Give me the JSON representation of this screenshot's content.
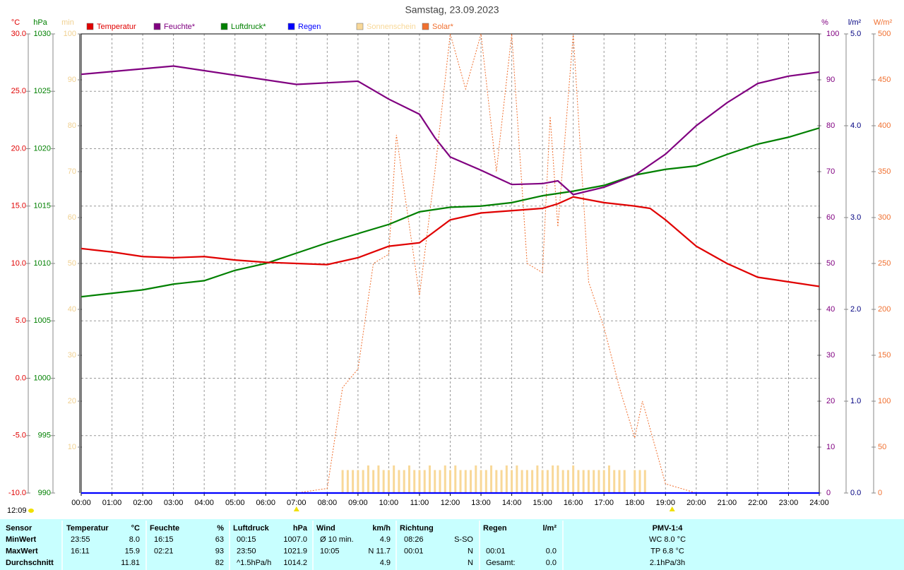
{
  "chart_data": {
    "type": "line",
    "title": "Samstag, 23.09.2023",
    "time_label": "12:09",
    "sun_events": [
      420,
      1153
    ],
    "xlim": [
      0,
      1440
    ],
    "xticks": [
      {
        "value": 0,
        "label": "00:00"
      },
      {
        "value": 60,
        "label": "01:00"
      },
      {
        "value": 120,
        "label": "02:00"
      },
      {
        "value": 180,
        "label": "03:00"
      },
      {
        "value": 240,
        "label": "04:00"
      },
      {
        "value": 300,
        "label": "05:00"
      },
      {
        "value": 360,
        "label": "06:00"
      },
      {
        "value": 420,
        "label": "07:00"
      },
      {
        "value": 480,
        "label": "08:00"
      },
      {
        "value": 540,
        "label": "09:00"
      },
      {
        "value": 600,
        "label": "10:00"
      },
      {
        "value": 660,
        "label": "11:00"
      },
      {
        "value": 720,
        "label": "12:00"
      },
      {
        "value": 780,
        "label": "13:00"
      },
      {
        "value": 840,
        "label": "14:00"
      },
      {
        "value": 900,
        "label": "15:00"
      },
      {
        "value": 960,
        "label": "16:00"
      },
      {
        "value": 1020,
        "label": "17:00"
      },
      {
        "value": 1080,
        "label": "18:00"
      },
      {
        "value": 1140,
        "label": "19:00"
      },
      {
        "value": 1200,
        "label": "20:00"
      },
      {
        "value": 1260,
        "label": "21:00"
      },
      {
        "value": 1320,
        "label": "22:00"
      },
      {
        "value": 1380,
        "label": "23:00"
      },
      {
        "value": 1440,
        "label": "24:00"
      }
    ],
    "grid": true,
    "axes": [
      {
        "label": "°C",
        "color": "#e00000",
        "lim": [
          -10,
          30
        ],
        "ticks": [
          {
            "value": -10,
            "label": "-10.0"
          },
          {
            "value": -5,
            "label": "-5.0"
          },
          {
            "value": 0,
            "label": "0.0"
          },
          {
            "value": 5,
            "label": "5.0"
          },
          {
            "value": 10,
            "label": "10.0"
          },
          {
            "value": 15,
            "label": "15.0"
          },
          {
            "value": 20,
            "label": "20.0"
          },
          {
            "value": 25,
            "label": "25.0"
          },
          {
            "value": 30,
            "label": "30.0"
          }
        ]
      },
      {
        "label": "hPa",
        "color": "#008000",
        "lim": [
          990,
          1030
        ],
        "ticks": [
          990,
          995,
          1000,
          1005,
          1010,
          1015,
          1020,
          1025,
          1030
        ]
      },
      {
        "label": "min",
        "color": "#f0d090",
        "lim": [
          0,
          100
        ],
        "ticks": [
          10,
          20,
          30,
          40,
          50,
          60,
          70,
          80,
          90,
          100
        ]
      },
      {
        "label": "%",
        "color": "#800080",
        "lim": [
          0,
          100
        ],
        "ticks": [
          0,
          10,
          20,
          30,
          40,
          50,
          60,
          70,
          80,
          90,
          100
        ]
      },
      {
        "label": "l/m²",
        "color": "#000080",
        "lim": [
          0,
          5
        ],
        "ticks": [
          {
            "value": 0,
            "label": "0.0"
          },
          {
            "value": 1,
            "label": "1.0"
          },
          {
            "value": 2,
            "label": "2.0"
          },
          {
            "value": 3,
            "label": "3.0"
          },
          {
            "value": 4,
            "label": "4.0"
          },
          {
            "value": 5,
            "label": "5.0"
          }
        ]
      },
      {
        "label": "W/m²",
        "color": "#f07030",
        "lim": [
          0,
          500
        ],
        "ticks": [
          0,
          50,
          100,
          150,
          200,
          250,
          300,
          350,
          400,
          450,
          500
        ]
      }
    ],
    "series": [
      {
        "name": "Temperatur",
        "color": "#e00000",
        "axis": 0,
        "style": "line",
        "x": [
          0,
          60,
          120,
          180,
          240,
          300,
          360,
          420,
          480,
          540,
          600,
          660,
          690,
          720,
          780,
          840,
          900,
          930,
          960,
          1020,
          1080,
          1110,
          1140,
          1200,
          1260,
          1320,
          1380,
          1440
        ],
        "values": [
          11.3,
          11.0,
          10.6,
          10.5,
          10.6,
          10.3,
          10.1,
          10.0,
          9.9,
          10.5,
          11.5,
          11.8,
          12.8,
          13.8,
          14.4,
          14.6,
          14.8,
          15.2,
          15.8,
          15.3,
          15.0,
          14.8,
          13.8,
          11.5,
          10.0,
          8.8,
          8.4,
          8.0
        ]
      },
      {
        "name": "Feuchte*",
        "color": "#800080",
        "axis": 3,
        "style": "line",
        "x": [
          0,
          180,
          420,
          540,
          600,
          660,
          690,
          720,
          780,
          840,
          900,
          930,
          960,
          1020,
          1080,
          1140,
          1200,
          1260,
          1320,
          1380,
          1440
        ],
        "values": [
          91.2,
          93,
          89,
          89.7,
          85.8,
          82.5,
          77.4,
          73.2,
          70.3,
          67.2,
          67.4,
          68,
          65,
          66.6,
          69.2,
          73.8,
          80,
          85,
          89.2,
          90.8,
          91.7
        ]
      },
      {
        "name": "Luftdruck*",
        "color": "#008000",
        "axis": 1,
        "style": "line",
        "x": [
          0,
          120,
          180,
          240,
          300,
          360,
          420,
          480,
          540,
          600,
          660,
          720,
          780,
          840,
          900,
          960,
          1020,
          1080,
          1140,
          1200,
          1260,
          1320,
          1380,
          1440
        ],
        "values": [
          1007.1,
          1007.7,
          1008.2,
          1008.5,
          1009.4,
          1010.0,
          1010.9,
          1011.8,
          1012.6,
          1013.4,
          1014.5,
          1014.9,
          1015.0,
          1015.3,
          1015.9,
          1016.3,
          1016.8,
          1017.7,
          1018.2,
          1018.5,
          1019.5,
          1020.4,
          1021.0,
          1021.8
        ]
      },
      {
        "name": "Regen",
        "color": "#0000ff",
        "axis": 4,
        "style": "line",
        "x": [
          0,
          1440
        ],
        "values": [
          0,
          0
        ]
      },
      {
        "name": "Sonnenschein",
        "color": "#f8d898",
        "axis": 2,
        "style": "bars",
        "x": [
          510,
          520,
          530,
          540,
          550,
          560,
          570,
          580,
          590,
          600,
          610,
          620,
          630,
          640,
          650,
          660,
          670,
          680,
          690,
          700,
          710,
          720,
          730,
          740,
          750,
          760,
          770,
          780,
          790,
          800,
          810,
          820,
          830,
          840,
          850,
          860,
          870,
          880,
          890,
          900,
          910,
          920,
          930,
          940,
          950,
          960,
          970,
          980,
          990,
          1000,
          1010,
          1020,
          1030,
          1040,
          1050,
          1060,
          1080,
          1090,
          1100
        ],
        "values": [
          5,
          5,
          5,
          5,
          5,
          6,
          5,
          6,
          5,
          5,
          6,
          5,
          5,
          6,
          5,
          5,
          5,
          6,
          5,
          5,
          6,
          5,
          6,
          5,
          5,
          5,
          6,
          5,
          5,
          6,
          5,
          5,
          6,
          5,
          6,
          5,
          5,
          5,
          6,
          5,
          5,
          6,
          6,
          5,
          5,
          6,
          5,
          5,
          5,
          5,
          5,
          5,
          6,
          5,
          5,
          5,
          5,
          5,
          5
        ]
      },
      {
        "name": "Solar*",
        "color": "#f07030",
        "axis": 5,
        "style": "dashed",
        "x": [
          0,
          420,
          480,
          510,
          540,
          570,
          600,
          615,
          630,
          660,
          690,
          720,
          750,
          780,
          810,
          840,
          870,
          900,
          915,
          930,
          960,
          990,
          1020,
          1050,
          1080,
          1095,
          1110,
          1140,
          1200,
          1440
        ],
        "values": [
          0,
          0,
          5,
          115,
          135,
          250,
          260,
          390,
          330,
          215,
          350,
          500,
          440,
          500,
          350,
          500,
          250,
          240,
          410,
          290,
          500,
          230,
          180,
          115,
          60,
          100,
          70,
          10,
          0,
          0
        ]
      }
    ]
  },
  "table": {
    "header": {
      "label": "Sensor",
      "temp_time": "Temperatur",
      "temp": "°C",
      "hum_time": "Feuchte",
      "hum": "%",
      "press_time": "Luftdruck",
      "press": "hPa",
      "wind_time": "Wind",
      "wind": "km/h",
      "dir_time": "Richtung",
      "rain_time": "Regen",
      "rain": "l/m²",
      "pmv": "PMV-1:4"
    },
    "rows": [
      {
        "label": "MinWert",
        "temp_time": "23:55",
        "temp": "8.0",
        "hum_time": "16:15",
        "hum": "63",
        "press_time": "00:15",
        "press": "1007.0",
        "wind_time": "Ø 10 min.",
        "wind": "4.9",
        "dir_time": "08:26",
        "dir": "S-SO",
        "pmv": "WC 8.0 °C"
      },
      {
        "label": "MaxWert",
        "temp_time": "16:11",
        "temp": "15.9",
        "hum_time": "02:21",
        "hum": "93",
        "press_time": "23:50",
        "press": "1021.9",
        "wind_time": "10:05",
        "wind": "N 11.7",
        "dir_time": "00:01",
        "dir": "N",
        "rain_time": "00:01",
        "rain": "0.0",
        "pmv": "TP 6.8 °C"
      },
      {
        "label": "Durchschnitt",
        "temp": "11.81",
        "hum": "82",
        "press_time": "^1.5hPa/h",
        "press": "1014.2",
        "wind": "4.9",
        "dir": "N",
        "rain_time": "Gesamt:",
        "rain": "0.0",
        "pmv": "2.1hPa/3h"
      }
    ]
  }
}
